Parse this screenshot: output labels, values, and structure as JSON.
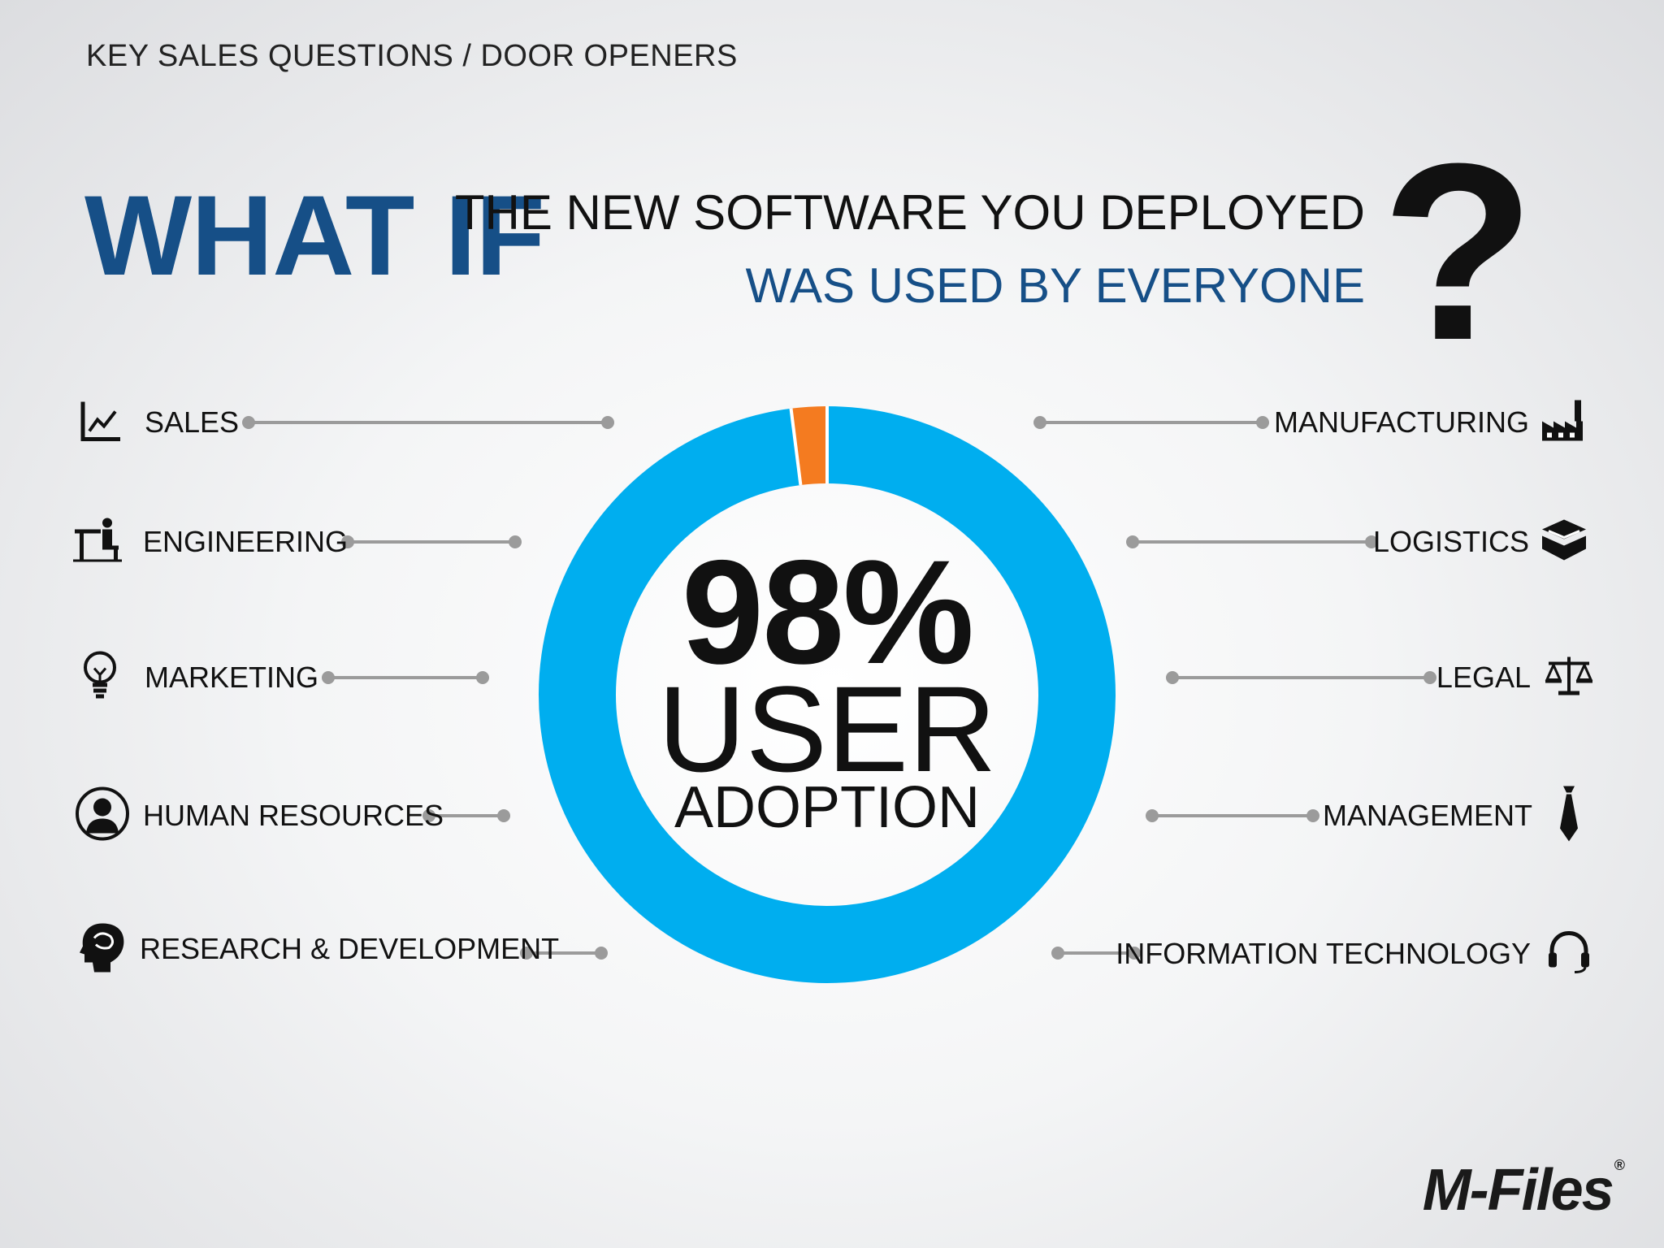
{
  "header": {
    "eyebrow": "KEY SALES QUESTIONS / DOOR OPENERS",
    "what_if": "WHAT IF",
    "line1": "THE NEW SOFTWARE YOU DEPLOYED",
    "line2": "WAS USED BY EVERYONE",
    "question_mark": "?"
  },
  "chart_data": {
    "type": "pie",
    "slices": [
      {
        "value": 98,
        "color": "#00aeef"
      },
      {
        "value": 2,
        "color": "#f47b20"
      }
    ],
    "center_value": "98%",
    "center_line1": "USER",
    "center_line2": "ADOPTION"
  },
  "departments": {
    "left": [
      {
        "label": "SALES",
        "icon": "line-chart-icon"
      },
      {
        "label": "ENGINEERING",
        "icon": "engineer-desk-icon"
      },
      {
        "label": "MARKETING",
        "icon": "lightbulb-icon"
      },
      {
        "label": "HUMAN RESOURCES",
        "icon": "person-circle-icon"
      },
      {
        "label": "RESEARCH & DEVELOPMENT",
        "icon": "head-brain-icon"
      }
    ],
    "right": [
      {
        "label": "MANUFACTURING",
        "icon": "factory-icon"
      },
      {
        "label": "LOGISTICS",
        "icon": "boxes-icon"
      },
      {
        "label": "LEGAL",
        "icon": "scales-icon"
      },
      {
        "label": "MANAGEMENT",
        "icon": "necktie-icon"
      },
      {
        "label": "INFORMATION TECHNOLOGY",
        "icon": "headset-icon"
      }
    ]
  },
  "colors": {
    "accent_blue": "#164f87",
    "ring_blue": "#00aeef",
    "ring_orange": "#f47b20",
    "connector": "#9b9b9b"
  },
  "logo": {
    "text": "M-Files",
    "mark": "®"
  }
}
